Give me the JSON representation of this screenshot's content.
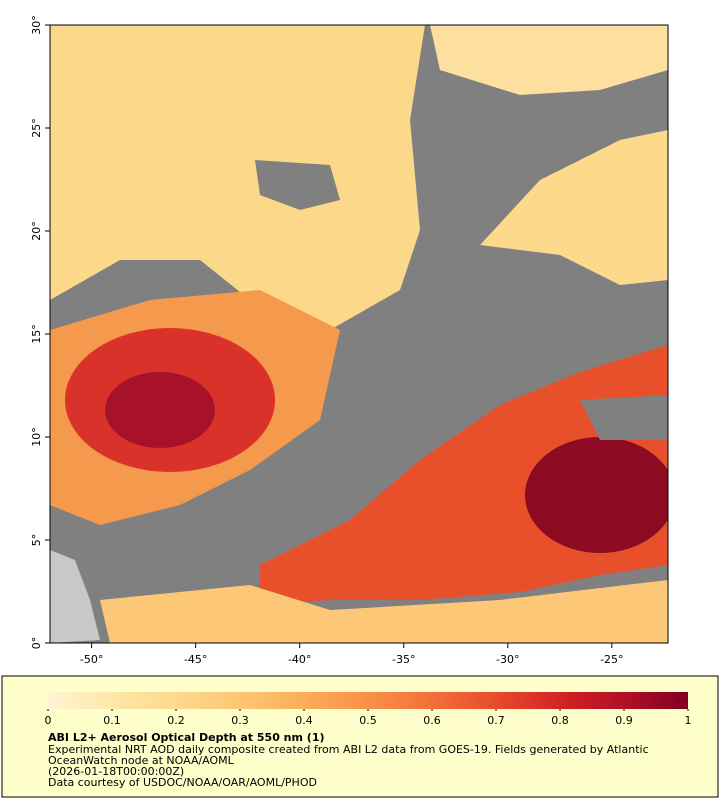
{
  "map": {
    "type": "map",
    "xlim": [
      -52,
      -22.3
    ],
    "ylim": [
      0,
      30
    ],
    "xticks": [
      {
        "value": -50,
        "label": "-50°"
      },
      {
        "value": -45,
        "label": "-45°"
      },
      {
        "value": -40,
        "label": "-40°"
      },
      {
        "value": -35,
        "label": "-35°"
      },
      {
        "value": -30,
        "label": "-30°"
      },
      {
        "value": -25,
        "label": "-25°"
      }
    ],
    "yticks": [
      {
        "value": 0,
        "label": "0°"
      },
      {
        "value": 5,
        "label": "5°"
      },
      {
        "value": 10,
        "label": "10°"
      },
      {
        "value": 15,
        "label": "15°"
      },
      {
        "value": 20,
        "label": "20°"
      },
      {
        "value": 25,
        "label": "25°"
      },
      {
        "value": 30,
        "label": "30°"
      }
    ],
    "background": "#808080"
  },
  "colorbar": {
    "clim": [
      0,
      1
    ],
    "ticks": [
      0,
      0.1,
      0.2,
      0.3,
      0.4,
      0.5,
      0.6,
      0.7,
      0.8,
      0.9,
      1
    ],
    "colors": [
      "#fff4d4",
      "#fee7a8",
      "#fdd98c",
      "#fdc674",
      "#fcae5a",
      "#f99148",
      "#f3703a",
      "#e84a2c",
      "#d42424",
      "#b20f26",
      "#800020"
    ]
  },
  "caption": {
    "title": "ABI L2+ Aerosol Optical Depth at 550 nm (1)",
    "lines": [
      "Experimental NRT AOD daily composite created from ABI L2 data from GOES-19. Fields generated by Atlantic",
      "OceanWatch node at NOAA/AOML",
      "(2026-01-18T00:00:00Z)",
      "Data courtesy of USDOC/NOAA/OAR/AOML/PHOD"
    ]
  }
}
